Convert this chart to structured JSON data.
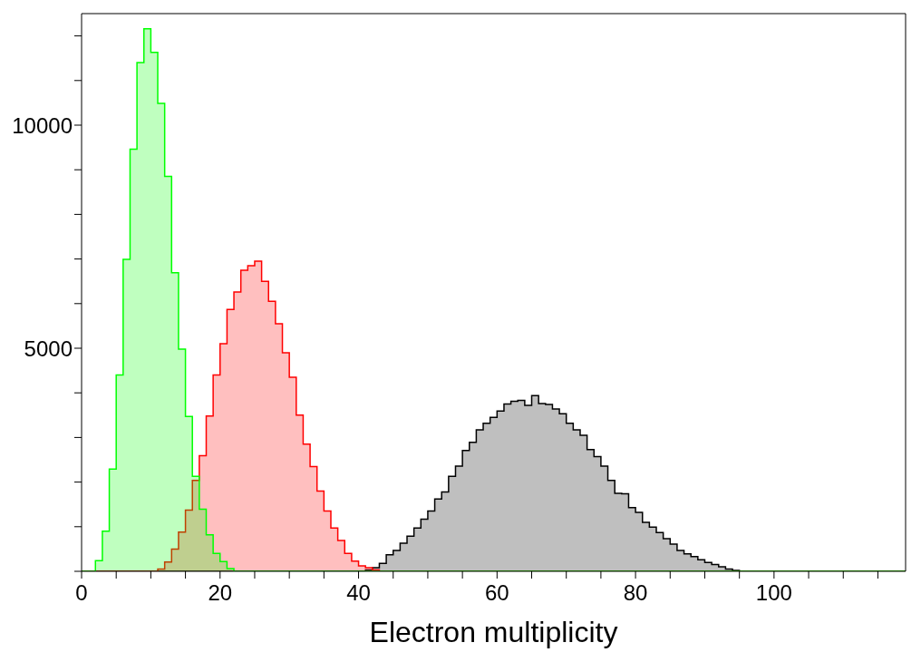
{
  "chart_data": {
    "type": "histogram",
    "xlabel": "Electron multiplicity",
    "bins": [
      0,
      1,
      2,
      3,
      4,
      5,
      6,
      7,
      8,
      9,
      10,
      11,
      12,
      13,
      14,
      15,
      16,
      17,
      18,
      19,
      20,
      21,
      22,
      23,
      24,
      25,
      26,
      27,
      28,
      29,
      30,
      31,
      32,
      33,
      34,
      35,
      36,
      37,
      38,
      39,
      40,
      41,
      42,
      43,
      44,
      45,
      46,
      47,
      48,
      49,
      50,
      51,
      52,
      53,
      54,
      55,
      56,
      57,
      58,
      59,
      60,
      61,
      62,
      63,
      64,
      65,
      66,
      67,
      68,
      69,
      70,
      71,
      72,
      73,
      74,
      75,
      76,
      77,
      78,
      79,
      80,
      81,
      82,
      83,
      84,
      85,
      86,
      87,
      88,
      89,
      90,
      91,
      92,
      93,
      94,
      95,
      96,
      97,
      98,
      99,
      100,
      101,
      102,
      103,
      104,
      105,
      106,
      107,
      108,
      109,
      110,
      111,
      112,
      113,
      114,
      115,
      116,
      117,
      118,
      119
    ],
    "series": [
      {
        "color": "#000000",
        "values": [
          0,
          0,
          0,
          0,
          0,
          0,
          0,
          0,
          0,
          0,
          0,
          0,
          0,
          0,
          0,
          0,
          0,
          0,
          0,
          0,
          0,
          0,
          0,
          0,
          0,
          0,
          0,
          0,
          0,
          0,
          0,
          0,
          0,
          0,
          0,
          0,
          0,
          0,
          0,
          0,
          0,
          30,
          80,
          180,
          370,
          470,
          630,
          790,
          970,
          1170,
          1350,
          1620,
          1780,
          2130,
          2360,
          2710,
          2890,
          3170,
          3320,
          3450,
          3590,
          3750,
          3810,
          3830,
          3720,
          3940,
          3760,
          3740,
          3640,
          3530,
          3320,
          3170,
          3050,
          2730,
          2570,
          2360,
          2040,
          1750,
          1740,
          1430,
          1320,
          1100,
          990,
          870,
          730,
          610,
          470,
          390,
          330,
          260,
          200,
          150,
          100,
          50,
          20,
          0,
          0,
          0,
          0,
          0,
          0,
          0,
          0,
          0,
          0,
          0,
          0,
          0,
          0,
          0,
          0,
          0,
          0,
          0,
          0,
          0,
          0,
          0,
          0
        ]
      },
      {
        "color": "#ff0000",
        "values": [
          0,
          0,
          0,
          0,
          0,
          0,
          0,
          0,
          0,
          0,
          0,
          50,
          210,
          500,
          880,
          1370,
          2040,
          2590,
          3480,
          4400,
          5100,
          5870,
          6260,
          6750,
          6850,
          6950,
          6500,
          6050,
          5550,
          4900,
          4350,
          3500,
          2850,
          2350,
          1800,
          1350,
          970,
          690,
          400,
          230,
          120,
          80,
          30,
          0,
          0,
          0,
          0,
          0,
          0,
          0,
          0,
          0,
          0,
          0,
          0,
          0,
          0,
          0,
          0,
          0,
          0,
          0,
          0,
          0,
          0,
          0,
          0,
          0,
          0,
          0,
          0,
          0,
          0,
          0,
          0,
          0,
          0,
          0,
          0,
          0,
          0,
          0,
          0,
          0,
          0,
          0,
          0,
          0,
          0,
          0,
          0,
          0,
          0,
          0,
          0,
          0,
          0,
          0,
          0,
          0,
          0,
          0,
          0,
          0,
          0,
          0,
          0,
          0,
          0,
          0,
          0,
          0,
          0,
          0,
          0,
          0,
          0,
          0,
          0
        ]
      },
      {
        "color": "#00ff00",
        "values": [
          0,
          0,
          240,
          900,
          2290,
          4400,
          6990,
          9460,
          11400,
          12160,
          11630,
          10490,
          8850,
          6690,
          4980,
          3470,
          2130,
          1390,
          820,
          400,
          220,
          60,
          0,
          0,
          0,
          0,
          0,
          0,
          0,
          0,
          0,
          0,
          0,
          0,
          0,
          0,
          0,
          0,
          0,
          0,
          0,
          0,
          0,
          0,
          0,
          0,
          0,
          0,
          0,
          0,
          0,
          0,
          0,
          0,
          0,
          0,
          0,
          0,
          0,
          0,
          0,
          0,
          0,
          0,
          0,
          0,
          0,
          0,
          0,
          0,
          0,
          0,
          0,
          0,
          0,
          0,
          0,
          0,
          0,
          0,
          0,
          0,
          0,
          0,
          0,
          0,
          0,
          0,
          0,
          0,
          0,
          0,
          0,
          0,
          0,
          0,
          0,
          0,
          0,
          0,
          0,
          0,
          0,
          0,
          0,
          0,
          0,
          0,
          0,
          0,
          0,
          0,
          0,
          0,
          0,
          0,
          0,
          0,
          0
        ]
      }
    ],
    "xlim": [
      0,
      119
    ],
    "xticks": [
      0,
      {
        "value": 5,
        "label": null
      },
      {
        "value": 10,
        "label": null
      },
      {
        "value": 15,
        "label": null
      },
      20,
      {
        "value": 25,
        "label": null
      },
      {
        "value": 30,
        "label": null
      },
      {
        "value": 35,
        "label": null
      },
      40,
      {
        "value": 45,
        "label": null
      },
      {
        "value": 50,
        "label": null
      },
      {
        "value": 55,
        "label": null
      },
      60,
      {
        "value": 65,
        "label": null
      },
      {
        "value": 70,
        "label": null
      },
      {
        "value": 75,
        "label": null
      },
      80,
      {
        "value": 85,
        "label": null
      },
      {
        "value": 90,
        "label": null
      },
      {
        "value": 95,
        "label": null
      },
      100,
      {
        "value": 105,
        "label": null
      },
      {
        "value": 110,
        "label": null
      },
      {
        "value": 115,
        "label": null
      }
    ],
    "ylim": [
      0,
      12500
    ],
    "yticks": [
      {
        "value": 0,
        "label": null
      },
      {
        "value": 1000,
        "label": null
      },
      {
        "value": 2000,
        "label": null
      },
      {
        "value": 3000,
        "label": null
      },
      {
        "value": 4000,
        "label": null
      },
      5000,
      {
        "value": 6000,
        "label": null
      },
      {
        "value": 7000,
        "label": null
      },
      {
        "value": 8000,
        "label": null
      },
      {
        "value": 9000,
        "label": null
      },
      10000,
      {
        "value": 11000,
        "label": null
      },
      {
        "value": 12000,
        "label": null
      }
    ],
    "grid": false
  }
}
